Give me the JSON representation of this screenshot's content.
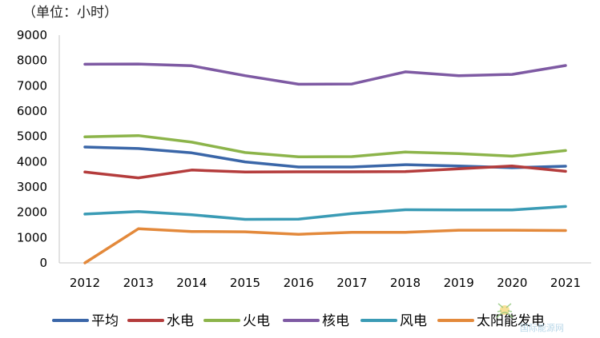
{
  "chart_data": {
    "type": "line",
    "unit_label": "（单位：小时）",
    "categories": [
      "2012",
      "2013",
      "2014",
      "2015",
      "2016",
      "2017",
      "2018",
      "2019",
      "2020",
      "2021"
    ],
    "ylim": [
      0,
      9000
    ],
    "yticks": [
      0,
      1000,
      2000,
      3000,
      4000,
      5000,
      6000,
      7000,
      8000,
      9000
    ],
    "grid": false,
    "legend_position": "bottom",
    "series": [
      {
        "name": "平均",
        "color": "#3a66a8",
        "values": [
          4580,
          4520,
          4350,
          3990,
          3790,
          3790,
          3880,
          3830,
          3760,
          3820
        ]
      },
      {
        "name": "水电",
        "color": "#b43c3c",
        "values": [
          3590,
          3360,
          3670,
          3590,
          3600,
          3600,
          3610,
          3720,
          3830,
          3620
        ]
      },
      {
        "name": "火电",
        "color": "#8cb44a",
        "values": [
          4980,
          5030,
          4770,
          4360,
          4190,
          4200,
          4380,
          4320,
          4220,
          4440
        ]
      },
      {
        "name": "核电",
        "color": "#7e5aa3",
        "values": [
          7850,
          7860,
          7790,
          7400,
          7060,
          7070,
          7550,
          7400,
          7450,
          7800
        ]
      },
      {
        "name": "风电",
        "color": "#3a9bb5",
        "values": [
          1930,
          2030,
          1900,
          1720,
          1730,
          1950,
          2100,
          2090,
          2090,
          2230
        ]
      },
      {
        "name": "太阳能发电",
        "color": "#e3893b",
        "values": [
          0,
          1350,
          1240,
          1230,
          1130,
          1210,
          1210,
          1290,
          1290,
          1280
        ]
      }
    ]
  },
  "watermark": {
    "text": "国际能源网",
    "icon": "sun-leaf-logo-icon"
  }
}
